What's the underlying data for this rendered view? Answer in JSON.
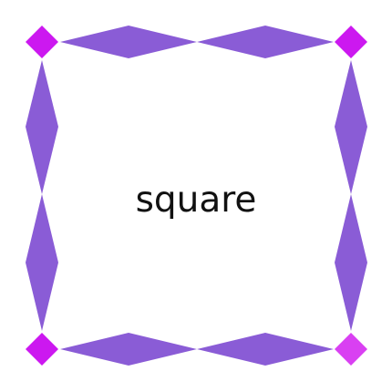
{
  "diagram": {
    "center_label": "square",
    "colors": {
      "edge": "#8A5CD6",
      "corner": "#CC18F0",
      "corner_highlight": "#D940F2",
      "background": "#FFFFFF",
      "text": "#111111"
    }
  }
}
